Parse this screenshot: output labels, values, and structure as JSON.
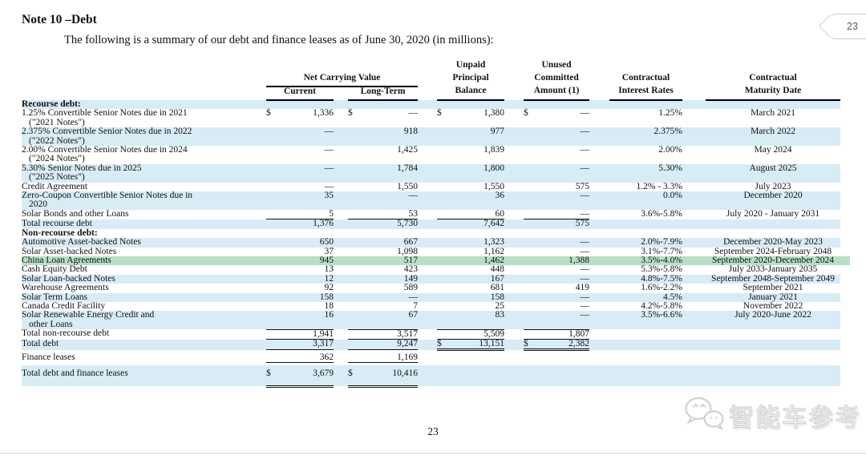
{
  "page": {
    "title": "Note 10 –Debt",
    "subtitle": "The following is a summary of our debt and finance leases as of June 30, 2020 (in millions):",
    "corner_badge": "23",
    "page_number": "23",
    "watermark_text": "智能车参考"
  },
  "colors": {
    "stripe_blue": "#d7ecf5",
    "highlight_green": "#b7dfc5",
    "text": "#111111"
  },
  "table": {
    "headers": {
      "net_carrying_value": "Net Carrying Value",
      "current": "Current",
      "long_term": "Long-Term",
      "unpaid_l1": "Unpaid",
      "unpaid_l2": "Principal",
      "unpaid_l3": "Balance",
      "unused_l1": "Unused",
      "unused_l2": "Committed",
      "unused_l3": "Amount (1)",
      "rates_l1": "Contractual",
      "rates_l2": "Interest Rates",
      "maturity_l1": "Contractual",
      "maturity_l2": "Maturity Date"
    },
    "rows": [
      {
        "name": "recourse-debt-header",
        "label": "Recourse debt:",
        "bold": true,
        "bg": "blue"
      },
      {
        "name": "notes-2021",
        "label": "1.25% Convertible Senior Notes due in 2021",
        "label2": "(\"2021 Notes\")",
        "bg": "white",
        "d1": "$",
        "v1": "1,336",
        "d2": "$",
        "v2": "—",
        "d3": "$",
        "v3": "1,380",
        "d4": "$",
        "v4": "—",
        "rate": "1.25%",
        "mat": "March 2021"
      },
      {
        "name": "notes-2022",
        "label": "2.375% Convertible Senior Notes due in 2022",
        "label2": "(\"2022 Notes\")",
        "bg": "blue",
        "v1": "—",
        "v2": "918",
        "v3": "977",
        "v4": "—",
        "rate": "2.375%",
        "mat": "March 2022"
      },
      {
        "name": "notes-2024",
        "label": "2.00% Convertible Senior Notes due in 2024",
        "label2": "(\"2024 Notes\")",
        "bg": "white",
        "v1": "—",
        "v2": "1,425",
        "v3": "1,839",
        "v4": "—",
        "rate": "2.00%",
        "mat": "May 2024"
      },
      {
        "name": "notes-2025",
        "label": "5.30% Senior Notes due in 2025",
        "label2": "(\"2025 Notes\")",
        "bg": "blue",
        "v1": "—",
        "v2": "1,784",
        "v3": "1,800",
        "v4": "—",
        "rate": "5.30%",
        "mat": "August 2025"
      },
      {
        "name": "credit-agreement",
        "label": "Credit Agreement",
        "bg": "white",
        "v1": "—",
        "v2": "1,550",
        "v3": "1,550",
        "v4": "575",
        "rate": "1.2% - 3.3%",
        "mat": "July 2023"
      },
      {
        "name": "zero-coupon-notes",
        "label": "Zero-Coupon Convertible Senior Notes due in",
        "label2": "2020",
        "bg": "blue",
        "v1": "35",
        "v2": "—",
        "v3": "36",
        "v4": "—",
        "rate": "0.0%",
        "mat": "December 2020"
      },
      {
        "name": "solar-bonds",
        "label": "Solar Bonds and other Loans",
        "bg": "white",
        "v1": "5",
        "v2": "53",
        "v3": "60",
        "v4": "—",
        "rate": "3.6%-5.8%",
        "mat": "July 2020 - January 2031",
        "u": "s,s,s,s"
      },
      {
        "name": "total-recourse-debt",
        "label": "Total recourse debt",
        "bg": "blue",
        "v1": "1,376",
        "v2": "5,730",
        "v3": "7,642",
        "v4": "575"
      },
      {
        "name": "non-recourse-debt-header",
        "label": "Non-recourse debt:",
        "bold": true,
        "bg": "white"
      },
      {
        "name": "automotive-asset-backed-notes",
        "label": "Automotive Asset-backed Notes",
        "bg": "blue",
        "v1": "650",
        "v2": "667",
        "v3": "1,323",
        "v4": "—",
        "rate": "2.0%-7.9%",
        "mat": "December 2020-May 2023"
      },
      {
        "name": "solar-asset-backed-notes",
        "label": "Solar Asset-backed Notes",
        "bg": "white",
        "v1": "37",
        "v2": "1,098",
        "v3": "1,162",
        "v4": "—",
        "rate": "3.1%-7.7%",
        "mat": "September 2024-February 2048"
      },
      {
        "name": "china-loan-agreements",
        "label": "China Loan Agreements",
        "bg": "green",
        "v1": "945",
        "v2": "517",
        "v3": "1,462",
        "v4": "1,388",
        "rate": "3.5%-4.0%",
        "mat": "September 2020-December 2024"
      },
      {
        "name": "cash-equity-debt",
        "label": "Cash Equity Debt",
        "bg": "white",
        "v1": "13",
        "v2": "423",
        "v3": "448",
        "v4": "—",
        "rate": "5.3%-5.8%",
        "mat": "July 2033-January 2035"
      },
      {
        "name": "solar-loan-backed-notes",
        "label": "Solar Loan-backed Notes",
        "bg": "blue",
        "v1": "12",
        "v2": "149",
        "v3": "167",
        "v4": "—",
        "rate": "4.8%-7.5%",
        "mat": "September 2048-September 2049"
      },
      {
        "name": "warehouse-agreements",
        "label": "Warehouse Agreements",
        "bg": "white",
        "v1": "92",
        "v2": "589",
        "v3": "681",
        "v4": "419",
        "rate": "1.6%-2.2%",
        "mat": "September 2021"
      },
      {
        "name": "solar-term-loans",
        "label": "Solar Term Loans",
        "bg": "blue",
        "v1": "158",
        "v2": "—",
        "v3": "158",
        "v4": "—",
        "rate": "4.5%",
        "mat": "January 2021"
      },
      {
        "name": "canada-credit-facility",
        "label": "Canada Credit Facility",
        "bg": "white",
        "v1": "18",
        "v2": "7",
        "v3": "25",
        "v4": "—",
        "rate": "4.2%-5.8%",
        "mat": "November 2022"
      },
      {
        "name": "solar-renewable-energy-credit-loans",
        "label": "Solar Renewable Energy Credit and",
        "label2": "other Loans",
        "bg": "blue",
        "v1": "16",
        "v2": "67",
        "v3": "83",
        "v4": "—",
        "rate": "3.5%-6.6%",
        "mat": "July 2020-June 2022",
        "u": "s,s,s,s"
      },
      {
        "name": "total-non-recourse-debt",
        "label": "Total non-recourse debt",
        "bg": "white",
        "v1": "1,941",
        "v2": "3,517",
        "v3": "5,509",
        "v4": "1,807",
        "u": "s,s,s,s"
      },
      {
        "name": "total-debt",
        "label": "Total debt",
        "bg": "blue",
        "v1": "3,317",
        "v2": "9,247",
        "d3": "$",
        "v3": "13,151",
        "d4": "$",
        "v4": "2,382",
        "u": "s,s,d,d"
      },
      {
        "name": "finance-leases",
        "label": "Finance leases",
        "bg": "white",
        "v1": "362",
        "v2": "1,169",
        "u": "s,s,,",
        "gap_before": 4
      },
      {
        "name": "total-debt-and-finance-leases",
        "label": "Total debt and finance leases",
        "bg": "blue",
        "d1": "$",
        "v1": "3,679",
        "d2": "$",
        "v2": "10,416",
        "u": "d,d,,",
        "gap_before": 3,
        "tall": true
      }
    ]
  }
}
